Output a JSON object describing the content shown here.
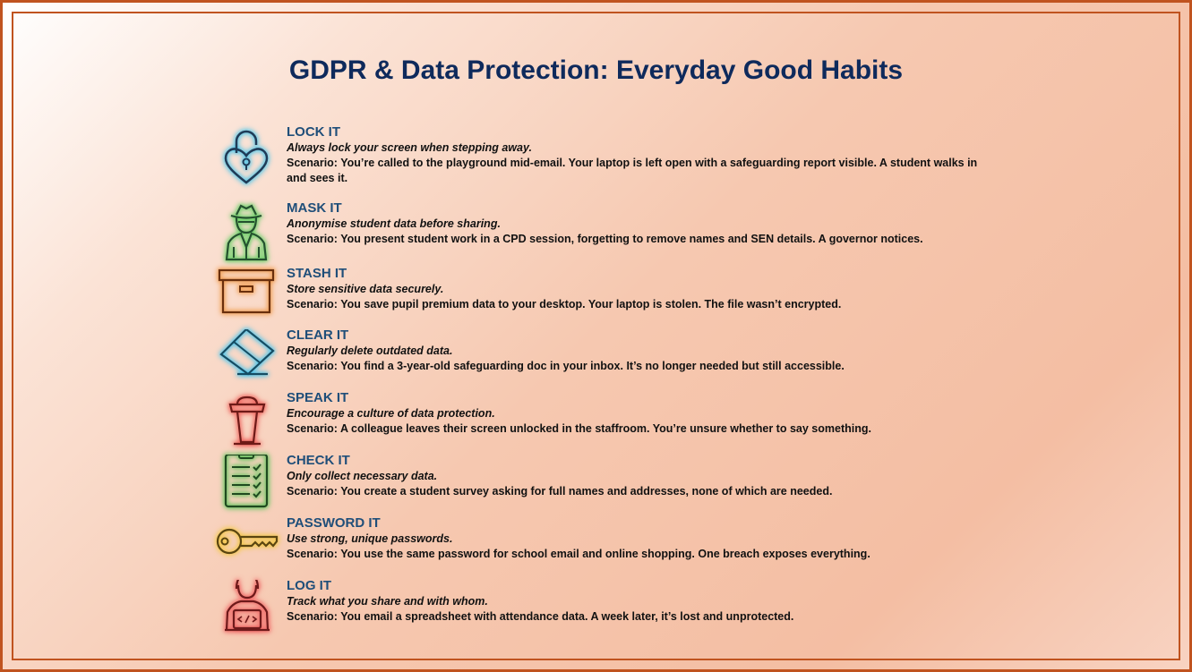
{
  "title": "GDPR & Data Protection: Everyday Good Habits",
  "colors": {
    "border": "#c0531f",
    "title": "#0e2a5c",
    "heading": "#1f4e79"
  },
  "habits": [
    {
      "icon": "heart-padlock-icon",
      "heading": "LOCK IT",
      "tagline": "Always lock your screen when stepping away.",
      "scenario": "Scenario: You’re called to the playground mid-email. Your laptop is left open with a safeguarding report visible. A student walks in and sees it."
    },
    {
      "icon": "spy-icon",
      "heading": "MASK IT",
      "tagline": "Anonymise student data before sharing.",
      "scenario": "Scenario: You present student work in a CPD session, forgetting to remove names and SEN details. A governor notices."
    },
    {
      "icon": "archive-box-icon",
      "heading": "STASH IT",
      "tagline": "Store sensitive data securely.",
      "scenario": "Scenario: You save pupil premium data to your desktop. Your laptop is stolen. The file wasn’t encrypted."
    },
    {
      "icon": "eraser-icon",
      "heading": "CLEAR IT",
      "tagline": "Regularly delete outdated data.",
      "scenario": "Scenario: You find a 3-year-old safeguarding doc in your inbox. It’s no longer needed but still accessible."
    },
    {
      "icon": "speaker-podium-icon",
      "heading": "SPEAK IT",
      "tagline": "Encourage a culture of data protection.",
      "scenario": "Scenario: A colleague leaves their screen unlocked in the staffroom. You’re unsure whether to say something."
    },
    {
      "icon": "clipboard-checklist-icon",
      "heading": "CHECK IT",
      "tagline": "Only collect necessary data.",
      "scenario": "Scenario: You create a student survey asking for full names and addresses, none of which are needed."
    },
    {
      "icon": "key-icon",
      "heading": "PASSWORD IT",
      "tagline": "Use strong, unique passwords.",
      "scenario": "Scenario: You use the same password for school email and online shopping. One breach exposes everything."
    },
    {
      "icon": "developer-laptop-icon",
      "heading": "LOG IT",
      "tagline": "Track what you share and with whom.",
      "scenario": "Scenario: You email a spreadsheet with attendance data. A week later, it’s lost and unprotected."
    }
  ]
}
